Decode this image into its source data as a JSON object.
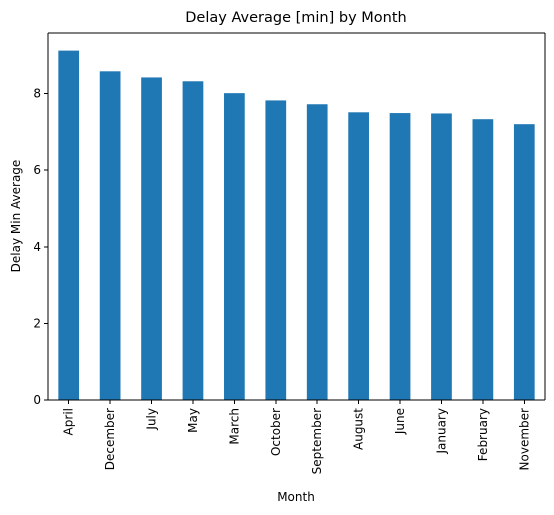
{
  "chart_data": {
    "type": "bar",
    "title": "Delay Average [min] by Month",
    "xlabel": "Month",
    "ylabel": "Delay Min Average",
    "categories": [
      "April",
      "December",
      "July",
      "May",
      "March",
      "October",
      "September",
      "August",
      "June",
      "January",
      "February",
      "November"
    ],
    "values": [
      9.12,
      8.58,
      8.42,
      8.32,
      8.01,
      7.82,
      7.72,
      7.51,
      7.49,
      7.48,
      7.33,
      7.2
    ],
    "yticks": [
      0,
      2,
      4,
      6,
      8
    ],
    "ylim": [
      0,
      9.58
    ],
    "bar_color": "#1f77b4",
    "grid": false,
    "legend": "none"
  }
}
